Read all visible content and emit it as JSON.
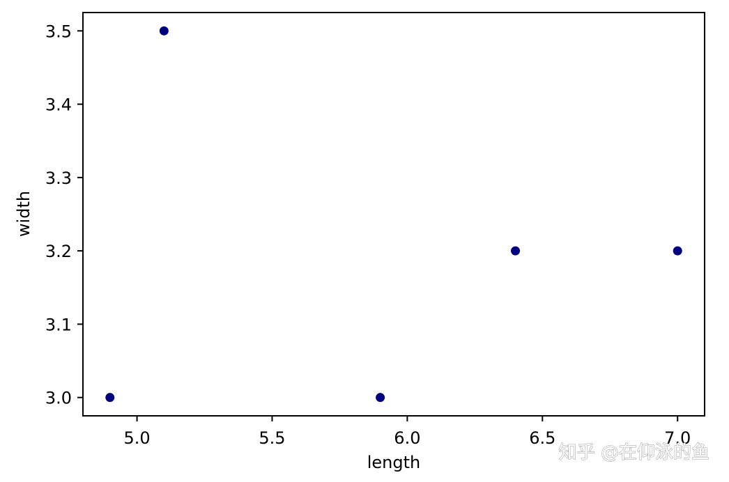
{
  "chart_data": {
    "type": "scatter",
    "xlabel": "length",
    "ylabel": "width",
    "x": [
      4.9,
      5.1,
      5.9,
      6.4,
      7.0
    ],
    "y": [
      3.0,
      3.5,
      3.0,
      3.2,
      3.2
    ],
    "xlim": [
      4.8,
      7.1
    ],
    "ylim": [
      2.975,
      3.525
    ],
    "xticks": [
      5.0,
      5.5,
      6.0,
      6.5,
      7.0
    ],
    "xtick_labels": [
      "5.0",
      "5.5",
      "6.0",
      "6.5",
      "7.0"
    ],
    "yticks": [
      3.0,
      3.1,
      3.2,
      3.3,
      3.4,
      3.5
    ],
    "ytick_labels": [
      "3.0",
      "3.1",
      "3.2",
      "3.3",
      "3.4",
      "3.5"
    ],
    "marker_color": "#000080",
    "grid": false,
    "legend": "none"
  },
  "watermark": "知乎 @在仰泳的鱼"
}
